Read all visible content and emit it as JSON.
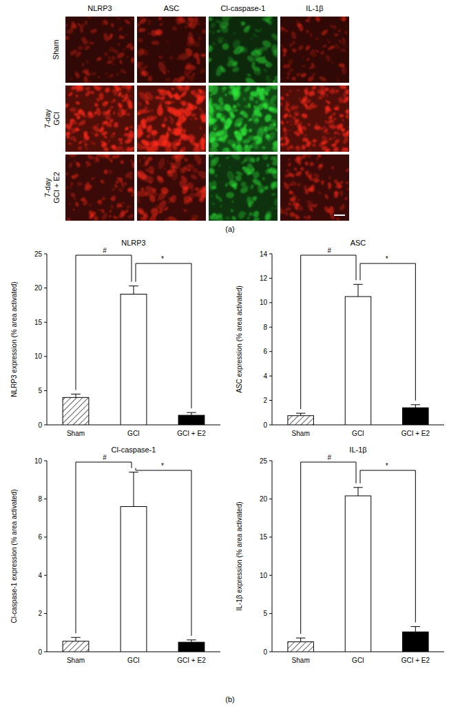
{
  "panel_a": {
    "label": "(a)",
    "columns": [
      {
        "label": "NLRP3",
        "color": "#ff2a1a"
      },
      {
        "label": "ASC",
        "color": "#ff2a1a"
      },
      {
        "label": "Cl-caspase-1",
        "color": "#2ee83a"
      },
      {
        "label": "IL-1β",
        "color": "#ff2a1a"
      }
    ],
    "rows": [
      [
        "Sham"
      ],
      [
        "7-day",
        "GCI"
      ],
      [
        "7-day",
        "GCI + E2"
      ]
    ]
  },
  "panel_b": {
    "label": "(b)"
  },
  "chart_data": [
    {
      "type": "bar",
      "title": "NLRP3",
      "y_label": "NLRP3 expression (% area activated)",
      "categories": [
        "Sham",
        "GCI",
        "GCI + E2"
      ],
      "values": [
        4.0,
        19.1,
        1.4
      ],
      "errors": [
        0.5,
        1.2,
        0.4
      ],
      "colors": [
        "hatch",
        "#ffffff",
        "#000000"
      ],
      "ylim": [
        0,
        25
      ],
      "yticks": [
        0,
        5,
        10,
        15,
        20,
        25
      ],
      "annotations": [
        {
          "text": "#",
          "from": 0,
          "to": 1
        },
        {
          "text": "*",
          "from": 1,
          "to": 2
        }
      ]
    },
    {
      "type": "bar",
      "title": "ASC",
      "y_label": "ASC expression (% area activated)",
      "categories": [
        "Sham",
        "GCI",
        "GCI + E2"
      ],
      "values": [
        0.75,
        10.5,
        1.4
      ],
      "errors": [
        0.2,
        1.0,
        0.25
      ],
      "colors": [
        "hatch",
        "#ffffff",
        "#000000"
      ],
      "ylim": [
        0,
        14
      ],
      "yticks": [
        0,
        2,
        4,
        6,
        8,
        10,
        12,
        14
      ],
      "annotations": [
        {
          "text": "#",
          "from": 0,
          "to": 1
        },
        {
          "text": "*",
          "from": 1,
          "to": 2
        }
      ]
    },
    {
      "type": "bar",
      "title": "Cl-caspase-1",
      "y_label": "Cl-caspase-1 expression (% area activated)",
      "categories": [
        "Sham",
        "GCI",
        "GCI + E2"
      ],
      "values": [
        0.55,
        7.6,
        0.5
      ],
      "errors": [
        0.2,
        1.8,
        0.12
      ],
      "colors": [
        "hatch",
        "#ffffff",
        "#000000"
      ],
      "ylim": [
        0,
        10
      ],
      "yticks": [
        0,
        2,
        4,
        6,
        8,
        10
      ],
      "annotations": [
        {
          "text": "#",
          "from": 0,
          "to": 1
        },
        {
          "text": "*",
          "from": 1,
          "to": 2
        }
      ]
    },
    {
      "type": "bar",
      "title": "IL-1β",
      "y_label": "IL-1β expression (% area activated)",
      "categories": [
        "Sham",
        "GCI",
        "GCI + E2"
      ],
      "values": [
        1.3,
        20.4,
        2.6
      ],
      "errors": [
        0.5,
        1.1,
        0.7
      ],
      "colors": [
        "hatch",
        "#ffffff",
        "#000000"
      ],
      "ylim": [
        0,
        25
      ],
      "yticks": [
        0,
        5,
        10,
        15,
        20,
        25
      ],
      "annotations": [
        {
          "text": "#",
          "from": 0,
          "to": 1
        },
        {
          "text": "*",
          "from": 1,
          "to": 2
        }
      ]
    }
  ]
}
